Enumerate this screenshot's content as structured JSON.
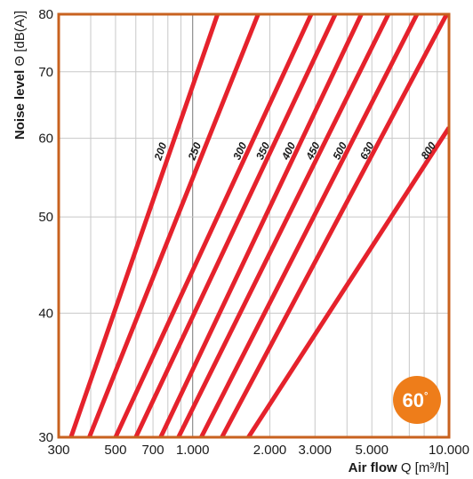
{
  "chart_data": {
    "type": "line",
    "x_scale": "log",
    "y_scale": "log",
    "xlim": [
      300,
      10000
    ],
    "ylim": [
      30,
      80
    ],
    "xlabel_bold": "Air flow",
    "xlabel_rest": " Q [m³/h]",
    "ylabel_bold": "Noise level",
    "ylabel_rest": " Θ [dB(A)]",
    "x_ticks": [
      {
        "value": 300,
        "label": "300"
      },
      {
        "value": 500,
        "label": "500"
      },
      {
        "value": 700,
        "label": "700"
      },
      {
        "value": 1000,
        "label": "1.000"
      },
      {
        "value": 2000,
        "label": "2.000"
      },
      {
        "value": 3000,
        "label": "3.000"
      },
      {
        "value": 5000,
        "label": "5.000"
      },
      {
        "value": 10000,
        "label": "10.000"
      }
    ],
    "x_minor_grid": [
      400,
      600,
      800,
      900,
      4000,
      6000,
      7000,
      8000,
      9000
    ],
    "y_ticks": [
      {
        "value": 30,
        "label": "30"
      },
      {
        "value": 40,
        "label": "40"
      },
      {
        "value": 50,
        "label": "50"
      },
      {
        "value": 60,
        "label": "60"
      },
      {
        "value": 70,
        "label": "70"
      },
      {
        "value": 80,
        "label": "80"
      }
    ],
    "grid": true,
    "badge": {
      "text": "60",
      "superscript": "°"
    },
    "series": [
      {
        "name": "200",
        "points": [
          [
            335,
            30
          ],
          [
            1250,
            80
          ]
        ]
      },
      {
        "name": "250",
        "points": [
          [
            395,
            30
          ],
          [
            1800,
            80
          ]
        ]
      },
      {
        "name": "300",
        "points": [
          [
            500,
            30
          ],
          [
            2900,
            80
          ]
        ]
      },
      {
        "name": "350",
        "points": [
          [
            600,
            30
          ],
          [
            3600,
            80
          ]
        ]
      },
      {
        "name": "400",
        "points": [
          [
            750,
            30
          ],
          [
            4550,
            80
          ]
        ]
      },
      {
        "name": "450",
        "points": [
          [
            880,
            30
          ],
          [
            5800,
            80
          ]
        ]
      },
      {
        "name": "500",
        "points": [
          [
            1080,
            30
          ],
          [
            7500,
            80
          ]
        ]
      },
      {
        "name": "630",
        "points": [
          [
            1300,
            30
          ],
          [
            9800,
            80
          ]
        ]
      },
      {
        "name": "800",
        "points": [
          [
            1650,
            30
          ],
          [
            10000,
            61.5
          ]
        ]
      }
    ],
    "colors": {
      "frame": "#c8621f",
      "lines": "#e5222c",
      "grid": "#c8c8c8",
      "badge": "#ee7d1a"
    }
  }
}
